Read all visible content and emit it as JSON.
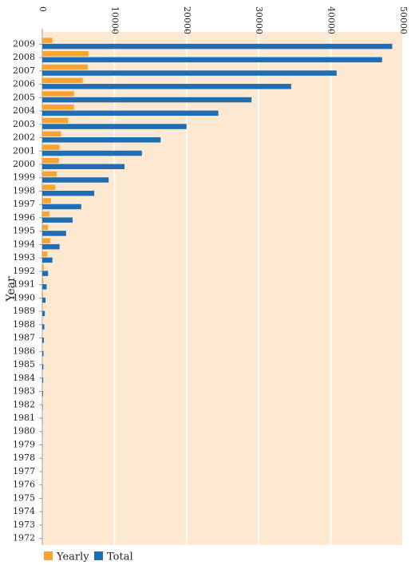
{
  "chart_data": {
    "type": "bar",
    "orientation": "horizontal",
    "y_label": "Year",
    "categories": [
      "2009",
      "2008",
      "2007",
      "2006",
      "2005",
      "2004",
      "2003",
      "2002",
      "2001",
      "2000",
      "1999",
      "1998",
      "1997",
      "1996",
      "1995",
      "1994",
      "1993",
      "1992",
      "1991",
      "1990",
      "1989",
      "1988",
      "1987",
      "1986",
      "1985",
      "1984",
      "1983",
      "1982",
      "1981",
      "1980",
      "1979",
      "1978",
      "1977",
      "1976",
      "1975",
      "1974",
      "1973",
      "1972"
    ],
    "series": [
      {
        "name": "Yearly",
        "color": "#f5a533",
        "values": [
          1400,
          6400,
          6300,
          5600,
          4400,
          4400,
          3600,
          2600,
          2400,
          2300,
          2000,
          1800,
          1200,
          1000,
          800,
          1100,
          700,
          200,
          150,
          100,
          80,
          60,
          50,
          40,
          30,
          20,
          40,
          20,
          10,
          5,
          5,
          5,
          5,
          5,
          5,
          5,
          5,
          5
        ]
      },
      {
        "name": "Total",
        "color": "#1f6db3",
        "values": [
          48500,
          47100,
          40800,
          34500,
          29000,
          24400,
          20000,
          16400,
          13800,
          11400,
          9200,
          7200,
          5400,
          4200,
          3300,
          2400,
          1400,
          800,
          600,
          450,
          350,
          280,
          220,
          170,
          150,
          120,
          100,
          60,
          40,
          30,
          25,
          20,
          15,
          10,
          5,
          5,
          5,
          5
        ]
      }
    ],
    "xlim": [
      0,
      50000
    ],
    "xticks": [
      0,
      10000,
      20000,
      30000,
      40000,
      50000
    ],
    "grid": true
  }
}
